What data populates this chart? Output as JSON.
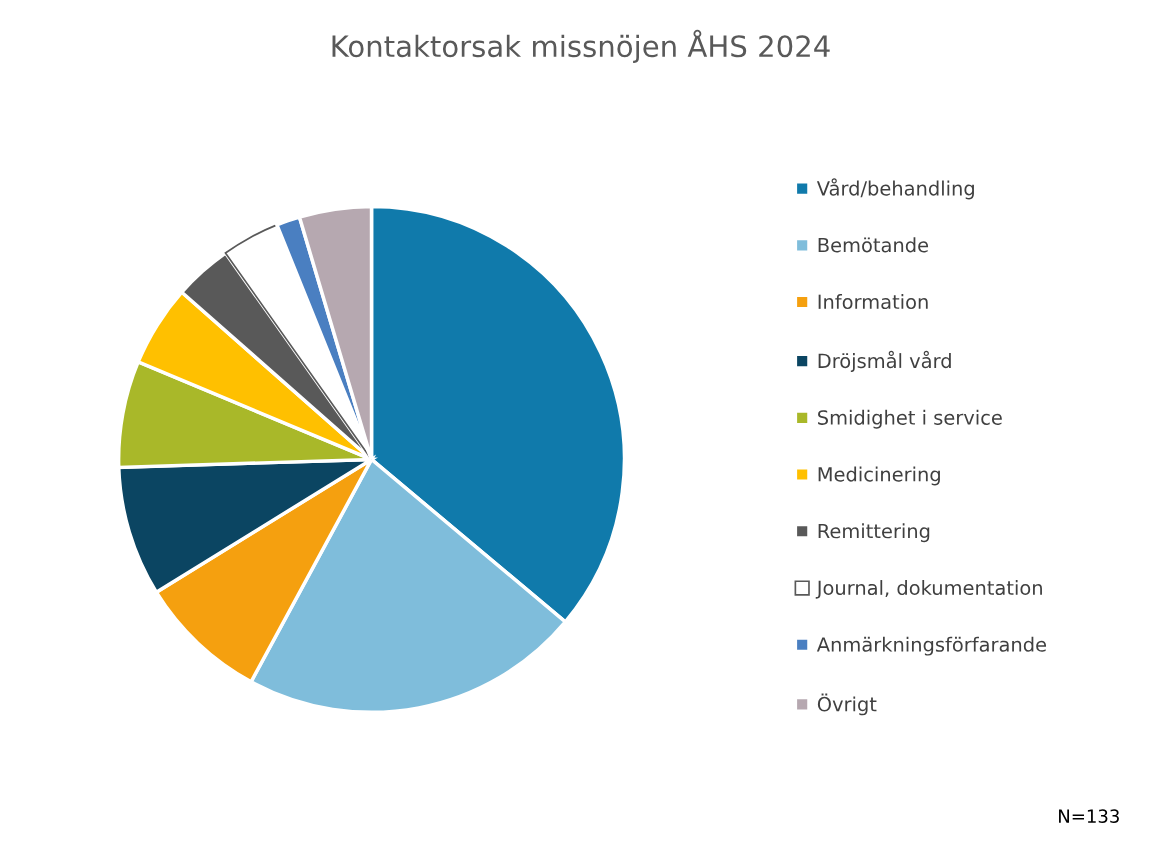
{
  "chart_data": {
    "type": "pie",
    "title": "Kontaktorsak missnöjen ÅHS 2024",
    "categories": [
      "Vård/behandling",
      "Bemötande",
      "Information",
      "Dröjsmål vård",
      "Smidighet i service",
      "Medicinering",
      "Remittering",
      "Journal, dokumentation",
      "Anmärkningsförfarande",
      "Övrigt"
    ],
    "values": [
      36.1,
      21.8,
      8.3,
      8.3,
      6.8,
      5.2,
      3.7,
      3.7,
      1.5,
      4.6
    ],
    "colors": [
      "#107aab",
      "#7fbddb",
      "#f5a00f",
      "#0b4562",
      "#a9b829",
      "#ffc000",
      "#595959",
      "#ffffff",
      "#4a7fc1",
      "#b6a8b0"
    ],
    "legend": "right",
    "annotations": [
      "N=133"
    ]
  }
}
